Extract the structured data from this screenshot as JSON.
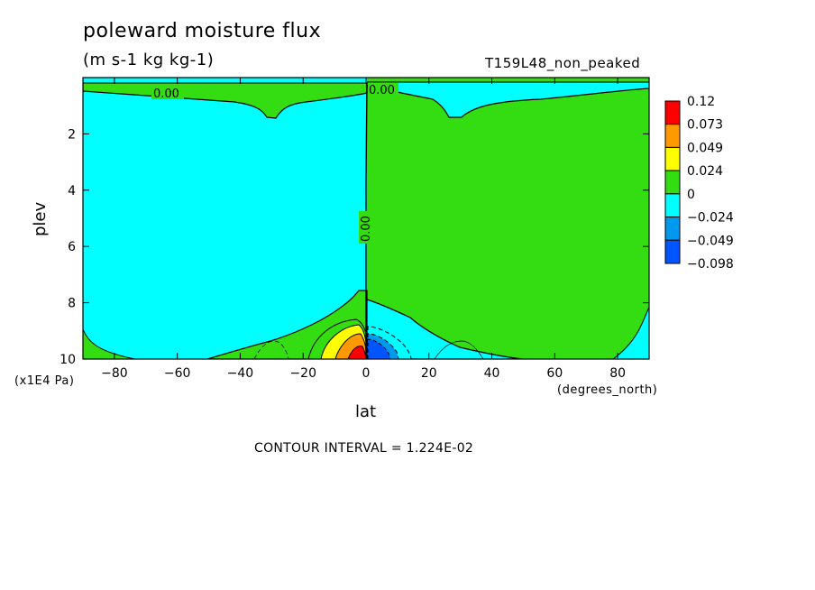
{
  "chart_data": {
    "type": "heatmap",
    "title": "poleward moisture flux",
    "subtitle": "(m s-1 kg kg-1)",
    "run_label": "T159L48_non_peaked",
    "xlabel": "lat",
    "ylabel": "plev",
    "x_units": "(degrees_north)",
    "y_units": "(x1E4 Pa)",
    "xlim": [
      -90,
      90
    ],
    "ylim": [
      0,
      10
    ],
    "y_inverted": true,
    "x_ticks": [
      -80,
      -60,
      -40,
      -20,
      0,
      20,
      40,
      60,
      80
    ],
    "x_tick_labels": [
      "-80",
      "-60",
      "-40",
      "-20",
      "0",
      "20",
      "40",
      "60",
      "80"
    ],
    "y_ticks": [
      2,
      4,
      6,
      8,
      10
    ],
    "y_tick_labels": [
      "2",
      "4",
      "6",
      "8",
      "10"
    ],
    "contour_interval_text": "CONTOUR INTERVAL = 1.224E-02",
    "contour_labels": [
      "0.00",
      "0.00",
      "0.00"
    ],
    "colorbar": {
      "levels": [
        "0.12",
        "0.073",
        "0.049",
        "0.024",
        "0",
        "−0.024",
        "−0.049",
        "−0.098"
      ],
      "colors": [
        "#ff0000",
        "#ff9900",
        "#ffff00",
        "#33dd11",
        "#00ffff",
        "#0099ee",
        "#0055ff"
      ]
    },
    "regions": [
      {
        "name": "southern-hemisphere-negative",
        "value_range": [
          -0.024,
          0
        ],
        "color": "#00ffff"
      },
      {
        "name": "northern-hemisphere-positive",
        "value_range": [
          0,
          0.024
        ],
        "color": "#33dd11"
      },
      {
        "name": "tropical-positive-maximum",
        "lat": -3,
        "plev": 9.7,
        "value_range": [
          0.073,
          0.12
        ],
        "color": "#ff0000"
      },
      {
        "name": "tropical-negative-minimum",
        "lat": 4,
        "plev": 9.6,
        "value_range": [
          -0.098,
          -0.049
        ],
        "color": "#0055ff"
      }
    ]
  },
  "colors": {
    "cyan": "#00ffff",
    "green": "#33dd11",
    "yellow": "#ffff00",
    "orange": "#ff9900",
    "red": "#ff0000",
    "blue_light": "#0099ee",
    "blue_dark": "#0055ff"
  }
}
